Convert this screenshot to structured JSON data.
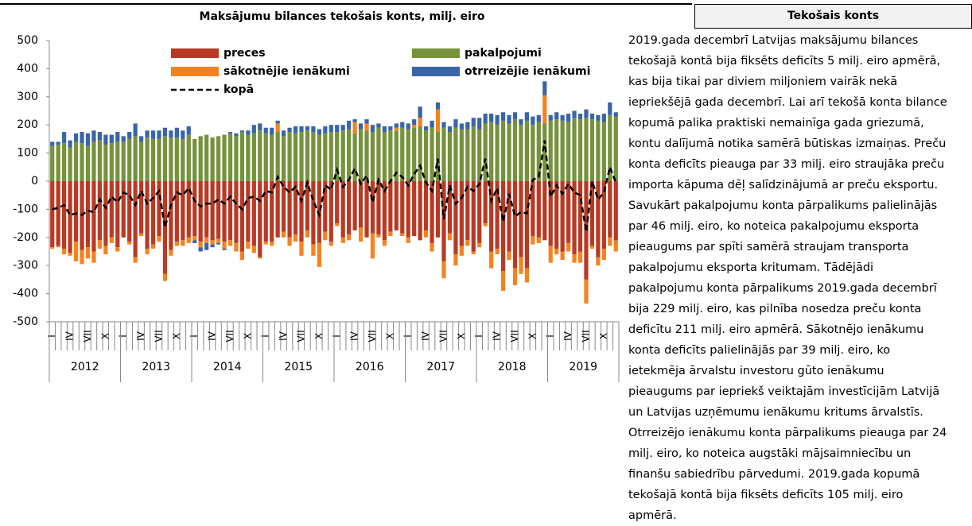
{
  "chart_data": {
    "type": "bar",
    "stacked": true,
    "title": "Maksājumu bilances tekošais konts, milj. eiro",
    "categories": [
      "I",
      null,
      null,
      "IV",
      null,
      null,
      "VII",
      null,
      null,
      "X",
      null,
      null,
      "I",
      null,
      null,
      "IV",
      null,
      null,
      "VII",
      null,
      null,
      "X",
      null,
      null,
      "I",
      null,
      null,
      "IV",
      null,
      null,
      "VII",
      null,
      null,
      "X",
      null,
      null,
      "I",
      null,
      null,
      "IV",
      null,
      null,
      "VII",
      null,
      null,
      "X",
      null,
      null,
      "I",
      null,
      null,
      "IV",
      null,
      null,
      "VII",
      null,
      null,
      "X",
      null,
      null,
      "I",
      null,
      null,
      "IV",
      null,
      null,
      "VII",
      null,
      null,
      "X",
      null,
      null,
      "I",
      null,
      null,
      "IV",
      null,
      null,
      "VII",
      null,
      null,
      "X",
      null,
      null,
      "I",
      null,
      null,
      "IV",
      null,
      null,
      "VII",
      null,
      null,
      "X",
      null,
      null
    ],
    "years": [
      "2012",
      "2013",
      "2014",
      "2015",
      "2016",
      "2017",
      "2018",
      "2019"
    ],
    "series": [
      {
        "name": "preces",
        "color": "#b83a24",
        "values": [
          -235,
          -230,
          -240,
          -255,
          -215,
          -245,
          -235,
          -250,
          -210,
          -230,
          -200,
          -235,
          -200,
          -215,
          -270,
          -185,
          -240,
          -225,
          -195,
          -330,
          -245,
          -215,
          -210,
          -200,
          -195,
          -215,
          -200,
          -210,
          -205,
          -215,
          -210,
          -220,
          -250,
          -215,
          -230,
          -270,
          -215,
          -215,
          -200,
          -180,
          -200,
          -190,
          -215,
          -175,
          -225,
          -220,
          -180,
          -215,
          -150,
          -200,
          -190,
          -175,
          -165,
          -200,
          -185,
          -190,
          -210,
          -180,
          -175,
          -185,
          -200,
          -195,
          -210,
          -175,
          -220,
          -200,
          -285,
          -185,
          -260,
          -230,
          -210,
          -250,
          -220,
          -150,
          -250,
          -240,
          -320,
          -250,
          -310,
          -270,
          -310,
          -195,
          -200,
          -210,
          -230,
          -240,
          -250,
          -220,
          -260,
          -250,
          -350,
          -230,
          -270,
          -240,
          -200,
          -211
        ]
      },
      {
        "name": "pakalpojumi",
        "color": "#76923c",
        "values": [
          125,
          130,
          135,
          120,
          140,
          135,
          125,
          140,
          145,
          130,
          135,
          140,
          140,
          150,
          160,
          140,
          155,
          150,
          150,
          160,
          155,
          155,
          150,
          165,
          150,
          160,
          165,
          155,
          160,
          165,
          170,
          160,
          175,
          165,
          170,
          180,
          170,
          165,
          175,
          160,
          175,
          170,
          175,
          180,
          175,
          165,
          170,
          175,
          175,
          180,
          185,
          170,
          185,
          180,
          175,
          190,
          175,
          180,
          180,
          190,
          185,
          190,
          195,
          180,
          190,
          175,
          190,
          175,
          190,
          185,
          185,
          195,
          185,
          205,
          210,
          200,
          215,
          205,
          220,
          200,
          215,
          200,
          210,
          205,
          215,
          220,
          215,
          210,
          225,
          220,
          225,
          220,
          215,
          210,
          235,
          229
        ]
      },
      {
        "name": "sākotnējie ienākumi",
        "color": "#f58220",
        "values": [
          -5,
          -5,
          -20,
          -10,
          -70,
          -50,
          -40,
          -40,
          -30,
          -30,
          -20,
          -15,
          0,
          -10,
          -20,
          -10,
          -20,
          -15,
          -20,
          -25,
          -20,
          -15,
          -20,
          -20,
          -15,
          -20,
          -20,
          -15,
          -15,
          -25,
          -20,
          -30,
          -30,
          -25,
          -25,
          -5,
          -10,
          -15,
          30,
          -20,
          -30,
          -25,
          -50,
          -25,
          -40,
          -85,
          -30,
          -15,
          -10,
          -20,
          -20,
          40,
          -50,
          25,
          -90,
          -10,
          -20,
          -15,
          10,
          -10,
          -20,
          10,
          30,
          -25,
          -30,
          80,
          -60,
          -25,
          -40,
          -35,
          -20,
          -10,
          -15,
          -10,
          -60,
          -20,
          -70,
          -30,
          -60,
          -60,
          -50,
          -30,
          -20,
          100,
          -60,
          -20,
          -30,
          -30,
          -30,
          -40,
          -85,
          -10,
          -30,
          -40,
          -30,
          -39
        ]
      },
      {
        "name": "otrreizējie ienākumi",
        "color": "#3a64a8",
        "values": [
          15,
          10,
          40,
          25,
          30,
          40,
          45,
          40,
          30,
          35,
          30,
          35,
          20,
          25,
          45,
          20,
          25,
          30,
          30,
          30,
          25,
          35,
          30,
          30,
          -10,
          -15,
          -25,
          -10,
          -5,
          -5,
          5,
          10,
          5,
          15,
          30,
          25,
          20,
          25,
          10,
          20,
          15,
          25,
          20,
          15,
          20,
          20,
          25,
          25,
          25,
          20,
          30,
          10,
          20,
          15,
          25,
          15,
          20,
          15,
          15,
          20,
          20,
          20,
          40,
          15,
          25,
          25,
          20,
          20,
          30,
          20,
          25,
          30,
          40,
          35,
          30,
          35,
          30,
          30,
          25,
          20,
          30,
          30,
          25,
          50,
          20,
          25,
          20,
          30,
          25,
          20,
          30,
          20,
          20,
          30,
          45,
          16
        ]
      }
    ],
    "line_series": {
      "name": "kopā",
      "color": "#000000",
      "values": [
        -100,
        -95,
        -85,
        -120,
        -115,
        -120,
        -105,
        -110,
        -65,
        -95,
        -55,
        -75,
        -40,
        -50,
        -85,
        -35,
        -80,
        -60,
        -35,
        -165,
        -85,
        -40,
        -50,
        -25,
        -70,
        -90,
        -80,
        -80,
        -65,
        -80,
        -55,
        -80,
        -100,
        -60,
        -55,
        -70,
        -35,
        -40,
        15,
        -20,
        -40,
        -20,
        -70,
        -5,
        -70,
        -120,
        -15,
        -30,
        40,
        -20,
        5,
        45,
        -10,
        20,
        -75,
        5,
        -35,
        0,
        30,
        15,
        -15,
        25,
        55,
        -5,
        -35,
        80,
        -135,
        -15,
        -80,
        -60,
        -20,
        -35,
        -10,
        80,
        -70,
        -25,
        -145,
        -45,
        -125,
        -110,
        -115,
        5,
        15,
        145,
        -55,
        -15,
        -45,
        -10,
        -40,
        -50,
        -180,
        0,
        -65,
        -40,
        50,
        -5
      ]
    },
    "ylim": [
      -500,
      500
    ],
    "yticks": [
      -500,
      -400,
      -300,
      -200,
      -100,
      0,
      100,
      200,
      300,
      400,
      500
    ],
    "grid": false
  },
  "side_panel": {
    "title": "Tekošais konts",
    "lines": [
      "2019.gada decembrī Latvijas maksājumu bilances",
      "tekošajā kontā bija fiksēts deficīts 5 milj. eiro apmērā,",
      "kas bija tikai par diviem miljoniem vairāk nekā",
      "iepriekšējā gada decembrī. Lai arī tekošā konta bilance",
      "kopumā palika praktiski nemainīga gada griezumā,",
      "kontu dalījumā notika samērā būtiskas izmaiņas. Preču",
      "konta deficīts pieauga par 33 milj. eiro straujāka preču",
      "importa kāpuma dēļ salīdzinājumā ar preču eksportu.",
      "Savukārt pakalpojumu konta pārpalikums palielinājās",
      "par 46 milj. eiro, ko noteica pakalpojumu eksporta",
      "pieaugums par spīti samērā straujam transporta",
      "pakalpojumu eksporta kritumam. Tādējādi",
      "pakalpojumu konta pārpalikums 2019.gada decembrī",
      "bija 229 milj. eiro, kas pilnība nosedza preču konta",
      "deficītu 211 milj. eiro apmērā. Sākotnējo ienākumu",
      "konta deficīts palielinājās par 39 milj. eiro, ko",
      "ietekmēja ārvalstu investoru gūto ienākumu",
      "pieaugums par iepriekš veiktajām investīcijām Latvijā",
      "un Latvijas uzņēmumu ienākumu kritums ārvalstīs.",
      "Otrreizējo ienākumu konta pārpalikums pieauga par 24",
      "milj. eiro, ko noteica augstāki mājsaimniecību un",
      "finanšu sabiedrību pārvedumi. 2019.gada kopumā",
      "tekošajā kontā bija fiksēts deficīts 105 milj. eiro",
      "apmērā."
    ]
  }
}
